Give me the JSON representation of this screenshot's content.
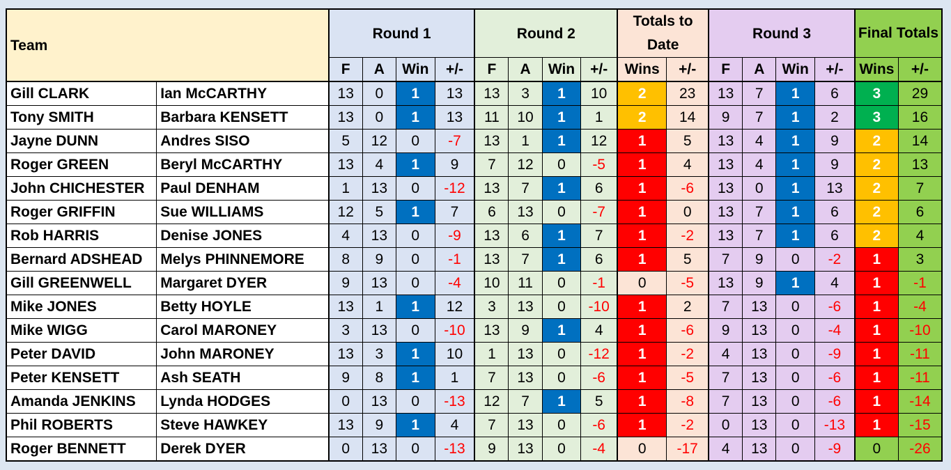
{
  "headers": {
    "team": "Team",
    "round1": "Round 1",
    "round2": "Round 2",
    "totals_to_date": "Totals to Date",
    "round3": "Round 3",
    "final_totals": "Final Totals",
    "sub": {
      "f": "F",
      "a": "A",
      "win": "Win",
      "pm": "+/-",
      "wins": "Wins"
    }
  },
  "colors": {
    "win_blue": "#0070c0",
    "red": "#ff0000",
    "orange": "#ffc000",
    "green": "#00b050",
    "final_bg": "#92d050"
  },
  "rows": [
    {
      "p1": "Gill CLARK",
      "p2": "Ian McCARTHY",
      "r1": [
        13,
        0,
        1,
        13
      ],
      "r2": [
        13,
        3,
        1,
        10
      ],
      "td": [
        2,
        23
      ],
      "r3": [
        13,
        7,
        1,
        6
      ],
      "ft": [
        3,
        29
      ]
    },
    {
      "p1": "Tony SMITH",
      "p2": "Barbara KENSETT",
      "r1": [
        13,
        0,
        1,
        13
      ],
      "r2": [
        11,
        10,
        1,
        1
      ],
      "td": [
        2,
        14
      ],
      "r3": [
        9,
        7,
        1,
        2
      ],
      "ft": [
        3,
        16
      ]
    },
    {
      "p1": "Jayne DUNN",
      "p2": "Andres SISO",
      "r1": [
        5,
        12,
        0,
        -7
      ],
      "r2": [
        13,
        1,
        1,
        12
      ],
      "td": [
        1,
        5
      ],
      "r3": [
        13,
        4,
        1,
        9
      ],
      "ft": [
        2,
        14
      ]
    },
    {
      "p1": "Roger GREEN",
      "p2": "Beryl McCARTHY",
      "r1": [
        13,
        4,
        1,
        9
      ],
      "r2": [
        7,
        12,
        0,
        -5
      ],
      "td": [
        1,
        4
      ],
      "r3": [
        13,
        4,
        1,
        9
      ],
      "ft": [
        2,
        13
      ]
    },
    {
      "p1": "John CHICHESTER",
      "p2": "Paul DENHAM",
      "r1": [
        1,
        13,
        0,
        -12
      ],
      "r2": [
        13,
        7,
        1,
        6
      ],
      "td": [
        1,
        -6
      ],
      "r3": [
        13,
        0,
        1,
        13
      ],
      "ft": [
        2,
        7
      ]
    },
    {
      "p1": "Roger GRIFFIN",
      "p2": "Sue WILLIAMS",
      "r1": [
        12,
        5,
        1,
        7
      ],
      "r2": [
        6,
        13,
        0,
        -7
      ],
      "td": [
        1,
        0
      ],
      "r3": [
        13,
        7,
        1,
        6
      ],
      "ft": [
        2,
        6
      ]
    },
    {
      "p1": "Rob HARRIS",
      "p2": "Denise JONES",
      "r1": [
        4,
        13,
        0,
        -9
      ],
      "r2": [
        13,
        6,
        1,
        7
      ],
      "td": [
        1,
        -2
      ],
      "r3": [
        13,
        7,
        1,
        6
      ],
      "ft": [
        2,
        4
      ]
    },
    {
      "p1": "Bernard ADSHEAD",
      "p2": "Melys PHINNEMORE",
      "r1": [
        8,
        9,
        0,
        -1
      ],
      "r2": [
        13,
        7,
        1,
        6
      ],
      "td": [
        1,
        5
      ],
      "r3": [
        7,
        9,
        0,
        -2
      ],
      "ft": [
        1,
        3
      ]
    },
    {
      "p1": "Gill GREENWELL",
      "p2": "Margaret DYER",
      "r1": [
        9,
        13,
        0,
        -4
      ],
      "r2": [
        10,
        11,
        0,
        -1
      ],
      "td": [
        0,
        -5
      ],
      "r3": [
        13,
        9,
        1,
        4
      ],
      "ft": [
        1,
        -1
      ]
    },
    {
      "p1": "Mike JONES",
      "p2": "Betty HOYLE",
      "r1": [
        13,
        1,
        1,
        12
      ],
      "r2": [
        3,
        13,
        0,
        -10
      ],
      "td": [
        1,
        2
      ],
      "r3": [
        7,
        13,
        0,
        -6
      ],
      "ft": [
        1,
        -4
      ]
    },
    {
      "p1": "Mike WIGG",
      "p2": "Carol MARONEY",
      "r1": [
        3,
        13,
        0,
        -10
      ],
      "r2": [
        13,
        9,
        1,
        4
      ],
      "td": [
        1,
        -6
      ],
      "r3": [
        9,
        13,
        0,
        -4
      ],
      "ft": [
        1,
        -10
      ]
    },
    {
      "p1": "Peter DAVID",
      "p2": "John MARONEY",
      "r1": [
        13,
        3,
        1,
        10
      ],
      "r2": [
        1,
        13,
        0,
        -12
      ],
      "td": [
        1,
        -2
      ],
      "r3": [
        4,
        13,
        0,
        -9
      ],
      "ft": [
        1,
        -11
      ]
    },
    {
      "p1": "Peter KENSETT",
      "p2": "Ash SEATH",
      "r1": [
        9,
        8,
        1,
        1
      ],
      "r2": [
        7,
        13,
        0,
        -6
      ],
      "td": [
        1,
        -5
      ],
      "r3": [
        7,
        13,
        0,
        -6
      ],
      "ft": [
        1,
        -11
      ]
    },
    {
      "p1": "Amanda JENKINS",
      "p2": "Lynda HODGES",
      "r1": [
        0,
        13,
        0,
        -13
      ],
      "r2": [
        12,
        7,
        1,
        5
      ],
      "td": [
        1,
        -8
      ],
      "r3": [
        7,
        13,
        0,
        -6
      ],
      "ft": [
        1,
        -14
      ]
    },
    {
      "p1": "Phil ROBERTS",
      "p2": "Steve HAWKEY",
      "r1": [
        13,
        9,
        1,
        4
      ],
      "r2": [
        7,
        13,
        0,
        -6
      ],
      "td": [
        1,
        -2
      ],
      "r3": [
        0,
        13,
        0,
        -13
      ],
      "ft": [
        1,
        -15
      ]
    },
    {
      "p1": "Roger BENNETT",
      "p2": "Derek DYER",
      "r1": [
        0,
        13,
        0,
        -13
      ],
      "r2": [
        9,
        13,
        0,
        -4
      ],
      "td": [
        0,
        -17
      ],
      "r3": [
        4,
        13,
        0,
        -9
      ],
      "ft": [
        0,
        -26
      ]
    }
  ]
}
